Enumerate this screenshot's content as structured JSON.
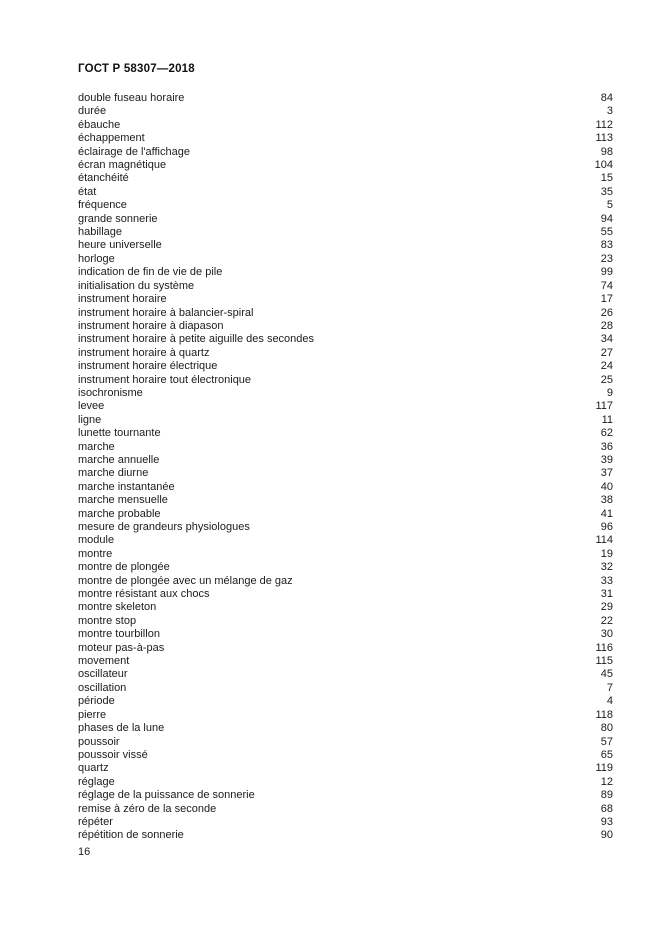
{
  "page": {
    "header_title": "ГОСТ Р 58307—2018",
    "footer_page_number": "16"
  },
  "index": {
    "entries": [
      {
        "term": "double fuseau horaire",
        "number": "84"
      },
      {
        "term": "durée",
        "number": "3"
      },
      {
        "term": "ébauche",
        "number": "112"
      },
      {
        "term": "échappement",
        "number": "113"
      },
      {
        "term": "éclairage de l'affichage",
        "number": "98"
      },
      {
        "term": "écran magnétique",
        "number": "104"
      },
      {
        "term": "étanchéité",
        "number": "15"
      },
      {
        "term": "état",
        "number": "35"
      },
      {
        "term": "fréquence",
        "number": "5"
      },
      {
        "term": "grande sonnerie",
        "number": "94"
      },
      {
        "term": "habillage",
        "number": "55"
      },
      {
        "term": "heure universelle",
        "number": "83"
      },
      {
        "term": "horloge",
        "number": "23"
      },
      {
        "term": "indication de fin de vie de pile",
        "number": "99"
      },
      {
        "term": "initialisation du système",
        "number": "74"
      },
      {
        "term": "instrument horaire",
        "number": "17"
      },
      {
        "term": "instrument horaire à balancier-spiral",
        "number": "26"
      },
      {
        "term": "instrument horaire à diapason",
        "number": "28"
      },
      {
        "term": "instrument horaire à petite aiguille des secondes",
        "number": "34"
      },
      {
        "term": "instrument horaire à quartz",
        "number": "27"
      },
      {
        "term": "instrument horaire électrique",
        "number": "24"
      },
      {
        "term": "instrument horaire tout électronique",
        "number": "25"
      },
      {
        "term": "isochronisme",
        "number": "9"
      },
      {
        "term": "levee",
        "number": "117"
      },
      {
        "term": "ligne",
        "number": "11"
      },
      {
        "term": "lunette tournante",
        "number": "62"
      },
      {
        "term": "marche",
        "number": "36"
      },
      {
        "term": "marche annuelle",
        "number": "39"
      },
      {
        "term": "marche diurne",
        "number": "37"
      },
      {
        "term": "marche instantanée",
        "number": "40"
      },
      {
        "term": "marche mensuelle",
        "number": "38"
      },
      {
        "term": "marche probable",
        "number": "41"
      },
      {
        "term": "mesure de grandeurs physiologues",
        "number": "96"
      },
      {
        "term": "module",
        "number": "114"
      },
      {
        "term": "montre",
        "number": "19"
      },
      {
        "term": "montre de plongée",
        "number": "32"
      },
      {
        "term": "montre de plongée avec un mélange de gaz",
        "number": "33"
      },
      {
        "term": "montre résistant aux chocs",
        "number": "31"
      },
      {
        "term": "montre skeleton",
        "number": "29"
      },
      {
        "term": "montre stop",
        "number": "22"
      },
      {
        "term": "montre tourbillon",
        "number": "30"
      },
      {
        "term": "moteur pas-à-pas",
        "number": "116"
      },
      {
        "term": "movement",
        "number": "115"
      },
      {
        "term": "oscillateur",
        "number": "45"
      },
      {
        "term": "oscillation",
        "number": "7"
      },
      {
        "term": "période",
        "number": "4"
      },
      {
        "term": "pierre",
        "number": "118"
      },
      {
        "term": "phases de la lune",
        "number": "80"
      },
      {
        "term": "poussoir",
        "number": "57"
      },
      {
        "term": "poussoir vissé",
        "number": "65"
      },
      {
        "term": "quartz",
        "number": "119"
      },
      {
        "term": "réglage",
        "number": "12"
      },
      {
        "term": "réglage de la puissance de sonnerie",
        "number": "89"
      },
      {
        "term": "remise à zéro de la seconde",
        "number": "68"
      },
      {
        "term": "répéter",
        "number": "93"
      },
      {
        "term": "répétition de sonnerie",
        "number": "90"
      }
    ]
  }
}
